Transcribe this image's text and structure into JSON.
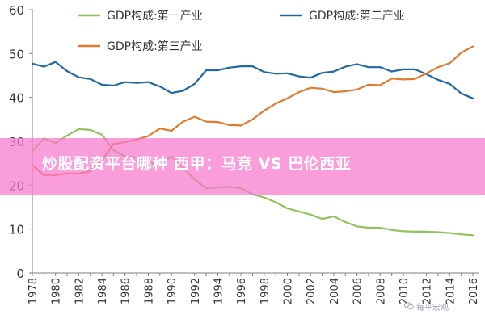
{
  "chart_data": {
    "type": "line",
    "x": [
      1978,
      1979,
      1980,
      1981,
      1982,
      1983,
      1984,
      1985,
      1986,
      1987,
      1988,
      1989,
      1990,
      1991,
      1992,
      1993,
      1994,
      1995,
      1996,
      1997,
      1998,
      1999,
      2000,
      2001,
      2002,
      2003,
      2004,
      2005,
      2006,
      2007,
      2008,
      2009,
      2010,
      2011,
      2012,
      2013,
      2014,
      2015,
      2016
    ],
    "x_ticks": [
      "1978",
      "1980",
      "1982",
      "1984",
      "1986",
      "1988",
      "1990",
      "1992",
      "1994",
      "1996",
      "1998",
      "2000",
      "2002",
      "2004",
      "2006",
      "2008",
      "2010",
      "2012",
      "2014",
      "2016"
    ],
    "y_ticks": [
      "0",
      "10",
      "20",
      "30",
      "40",
      "50",
      "60"
    ],
    "ylim": [
      0,
      60
    ],
    "xlim": [
      1978,
      2016
    ],
    "series": [
      {
        "name": "GDP构成:第一产业",
        "color": "#92c35a",
        "values": [
          27.7,
          30.7,
          29.6,
          31.3,
          32.8,
          32.6,
          31.5,
          27.9,
          26.6,
          26.3,
          25.2,
          24.6,
          26.6,
          24.0,
          21.3,
          19.3,
          19.5,
          19.6,
          19.3,
          17.9,
          17.2,
          16.1,
          14.7,
          14.0,
          13.3,
          12.3,
          12.9,
          11.6,
          10.6,
          10.3,
          10.3,
          9.8,
          9.5,
          9.4,
          9.4,
          9.3,
          9.1,
          8.8,
          8.6
        ]
      },
      {
        "name": "GDP构成:第二产业",
        "color": "#1f6aa5",
        "values": [
          47.7,
          47.0,
          48.1,
          46.0,
          44.6,
          44.2,
          42.9,
          42.7,
          43.5,
          43.3,
          43.5,
          42.5,
          41.0,
          41.5,
          43.1,
          46.2,
          46.2,
          46.8,
          47.1,
          47.1,
          45.8,
          45.4,
          45.5,
          44.8,
          44.5,
          45.6,
          45.9,
          47.0,
          47.6,
          46.9,
          46.9,
          45.9,
          46.4,
          46.4,
          45.3,
          44.0,
          43.1,
          40.9,
          39.8
        ]
      },
      {
        "name": "GDP构成:第三产业",
        "color": "#e07b2e",
        "values": [
          24.6,
          22.3,
          22.3,
          22.7,
          22.6,
          23.2,
          25.6,
          29.4,
          29.8,
          30.4,
          31.2,
          32.9,
          32.4,
          34.5,
          35.6,
          34.5,
          34.4,
          33.7,
          33.6,
          35.0,
          37.0,
          38.6,
          39.8,
          41.2,
          42.2,
          42.0,
          41.2,
          41.4,
          41.8,
          42.9,
          42.8,
          44.3,
          44.1,
          44.2,
          45.5,
          46.9,
          47.8,
          50.2,
          51.6
        ]
      }
    ]
  },
  "banner": {
    "text": "炒股配资平台哪种 西甲：马竞 VS 巴伦西亚"
  },
  "watermark": {
    "text": "每平宏观",
    "icon": "wechat-icon"
  }
}
